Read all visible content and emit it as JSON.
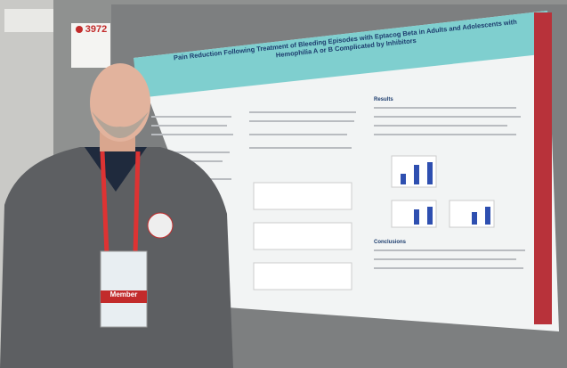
{
  "sign": {
    "number": "3972"
  },
  "poster": {
    "title": "Pain Reduction Following Treatment of Bleeding Episodes with Eptacog Beta in Adults and Adolescents with Hemophilia A or B Complicated by Inhibitors",
    "sections": [
      "Results",
      "Conclusions"
    ]
  },
  "badge": {
    "label": "Member"
  }
}
